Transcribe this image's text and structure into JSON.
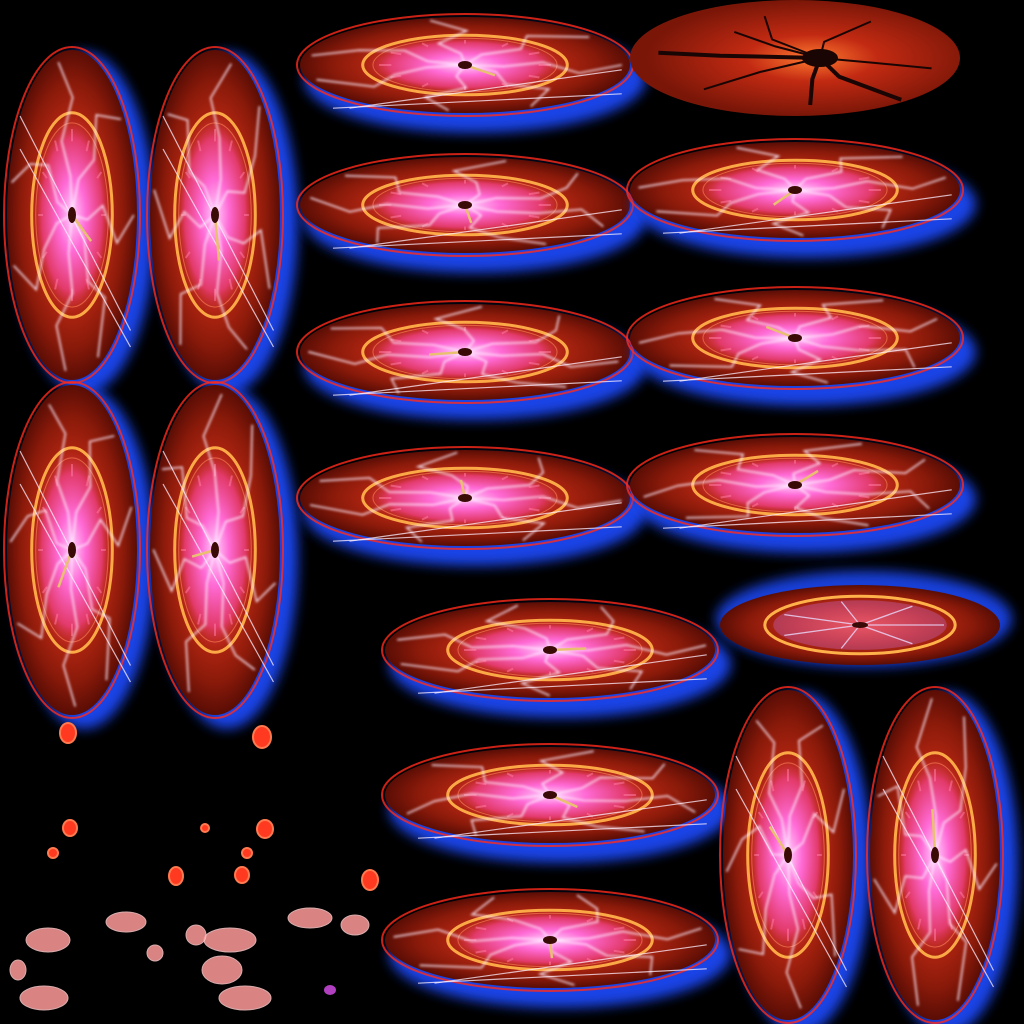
{
  "sheet": {
    "kind": "sprite-sheet",
    "subject": "clock portal",
    "background": "#000000",
    "colors": {
      "disc_outer": "#7a1608",
      "disc_mid": "#b32613",
      "disc_inner": "#ff4b2b",
      "ring": "#ffb14a",
      "core": "#ff6ad5",
      "crack": "#fff0ff",
      "glow": "#1f4cff",
      "glow_edge": "#ff2a1a",
      "hand": "#e8c070",
      "hub": "#3a0a06",
      "dark_crack": "#1a0505",
      "ember": "#ff3a20",
      "shard": "#ff9a9a"
    },
    "frames": [
      {
        "name": "vertical-frame-1",
        "orientation": "vertical",
        "variant": 0
      },
      {
        "name": "vertical-frame-2",
        "orientation": "vertical",
        "variant": 1
      },
      {
        "name": "vertical-frame-3",
        "orientation": "vertical",
        "variant": 2
      },
      {
        "name": "vertical-frame-4",
        "orientation": "vertical",
        "variant": 3
      },
      {
        "name": "horizontal-frame-1",
        "orientation": "horizontal",
        "variant": 0
      },
      {
        "name": "cracked-disc",
        "orientation": "horizontal",
        "variant": "cracked"
      },
      {
        "name": "horizontal-frame-2",
        "orientation": "horizontal",
        "variant": 1
      },
      {
        "name": "horizontal-frame-3",
        "orientation": "horizontal",
        "variant": 2
      },
      {
        "name": "horizontal-frame-4",
        "orientation": "horizontal",
        "variant": 3
      },
      {
        "name": "horizontal-frame-5",
        "orientation": "horizontal",
        "variant": 4
      },
      {
        "name": "horizontal-frame-6",
        "orientation": "horizontal",
        "variant": 5
      },
      {
        "name": "horizontal-frame-7",
        "orientation": "horizontal",
        "variant": 6
      },
      {
        "name": "horizontal-frame-8",
        "orientation": "horizontal",
        "variant": 7
      },
      {
        "name": "flat-disc",
        "orientation": "flat",
        "variant": 0
      },
      {
        "name": "horizontal-frame-9",
        "orientation": "horizontal",
        "variant": 8
      },
      {
        "name": "horizontal-frame-10",
        "orientation": "horizontal",
        "variant": 9
      },
      {
        "name": "vertical-frame-5",
        "orientation": "vertical",
        "variant": 4
      },
      {
        "name": "vertical-frame-6",
        "orientation": "vertical",
        "variant": 5
      }
    ]
  }
}
